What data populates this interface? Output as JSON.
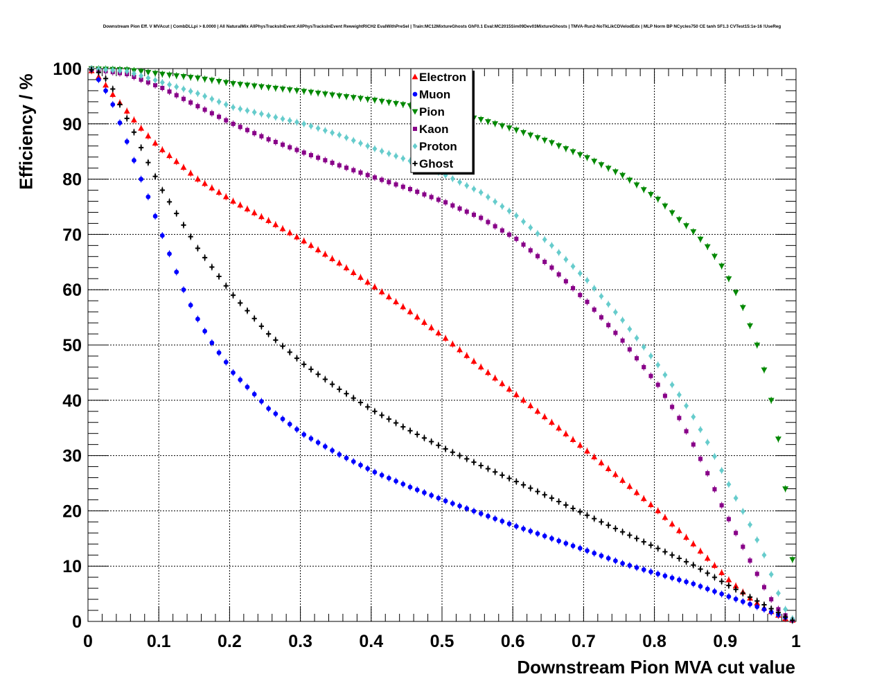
{
  "chart_data": {
    "type": "scatter",
    "title": "Downstream Pion Eff. V MVAcut | CombDLLpi > 8.0000 | All NaturalMix AllPhysTracksInEvent:AllPhysTracksInEvent ReweightRICH2 EvalWithPreSel | Train:MC12MixtureGhosts GhF0.1 Eval:MC2015Sim09Dev03MixtureGhosts | TMVA-Run2-NoTkLikCDVelodEdx | MLP Norm BP NCycles750 CE tanh SF1.3 CVTest15:1e-16 !UseReg",
    "xlabel": "Downstream Pion MVA cut value",
    "ylabel": "Efficiency / %",
    "xlim": [
      0,
      1
    ],
    "ylim": [
      0,
      100
    ],
    "x_ticks": [
      "0",
      "0.1",
      "0.2",
      "0.3",
      "0.4",
      "0.5",
      "0.6",
      "0.7",
      "0.8",
      "0.9",
      "1"
    ],
    "y_ticks": [
      "0",
      "10",
      "20",
      "30",
      "40",
      "50",
      "60",
      "70",
      "80",
      "90",
      "100"
    ],
    "grid": true,
    "legend_position": "top-center",
    "x_step": 0.01,
    "x_first": 0.005,
    "series": [
      {
        "name": "Electron",
        "color": "#ff0000",
        "marker": "triangle-up",
        "anchors": [
          [
            0.005,
            99.6
          ],
          [
            0.015,
            98.5
          ],
          [
            0.025,
            97
          ],
          [
            0.035,
            95.3
          ],
          [
            0.045,
            93.8
          ],
          [
            0.055,
            92.3
          ],
          [
            0.065,
            90.7
          ],
          [
            0.075,
            89.2
          ],
          [
            0.085,
            87.8
          ],
          [
            0.095,
            86.5
          ],
          [
            0.105,
            85.3
          ],
          [
            0.155,
            80
          ],
          [
            0.205,
            76
          ],
          [
            0.255,
            72.5
          ],
          [
            0.305,
            68.8
          ],
          [
            0.355,
            64.8
          ],
          [
            0.405,
            60.5
          ],
          [
            0.455,
            56
          ],
          [
            0.505,
            51.2
          ],
          [
            0.555,
            46
          ],
          [
            0.605,
            41
          ],
          [
            0.655,
            36
          ],
          [
            0.705,
            30.8
          ],
          [
            0.755,
            25.5
          ],
          [
            0.805,
            20
          ],
          [
            0.855,
            14
          ],
          [
            0.905,
            7.5
          ],
          [
            0.935,
            4.2
          ],
          [
            0.955,
            2.4
          ],
          [
            0.975,
            1.1
          ],
          [
            0.985,
            0.5
          ],
          [
            0.995,
            0.2
          ]
        ]
      },
      {
        "name": "Muon",
        "color": "#0000ff",
        "marker": "circle",
        "anchors": [
          [
            0.005,
            99.8
          ],
          [
            0.015,
            98
          ],
          [
            0.025,
            96
          ],
          [
            0.035,
            93.5
          ],
          [
            0.045,
            90.2
          ],
          [
            0.055,
            86.8
          ],
          [
            0.065,
            83.4
          ],
          [
            0.075,
            80
          ],
          [
            0.085,
            76.8
          ],
          [
            0.095,
            73.3
          ],
          [
            0.105,
            69.8
          ],
          [
            0.115,
            66.5
          ],
          [
            0.125,
            63.2
          ],
          [
            0.135,
            60
          ],
          [
            0.145,
            57.2
          ],
          [
            0.155,
            54.7
          ],
          [
            0.165,
            52.5
          ],
          [
            0.175,
            50.4
          ],
          [
            0.185,
            48.6
          ],
          [
            0.195,
            46.9
          ],
          [
            0.205,
            45
          ],
          [
            0.255,
            38.5
          ],
          [
            0.305,
            33.8
          ],
          [
            0.355,
            30.2
          ],
          [
            0.405,
            27
          ],
          [
            0.455,
            24.3
          ],
          [
            0.505,
            21.8
          ],
          [
            0.555,
            19.5
          ],
          [
            0.605,
            17.2
          ],
          [
            0.655,
            15
          ],
          [
            0.705,
            12.8
          ],
          [
            0.755,
            10.5
          ],
          [
            0.805,
            8.6
          ],
          [
            0.855,
            6.8
          ],
          [
            0.905,
            4.5
          ],
          [
            0.955,
            2.2
          ],
          [
            0.975,
            1.2
          ],
          [
            0.985,
            0.7
          ],
          [
            0.995,
            0.2
          ]
        ]
      },
      {
        "name": "Pion",
        "color": "#008800",
        "marker": "triangle-down",
        "anchors": [
          [
            0.005,
            100
          ],
          [
            0.055,
            99.8
          ],
          [
            0.105,
            99
          ],
          [
            0.155,
            98.3
          ],
          [
            0.205,
            97.3
          ],
          [
            0.255,
            96.6
          ],
          [
            0.305,
            95.9
          ],
          [
            0.355,
            95.1
          ],
          [
            0.405,
            94.3
          ],
          [
            0.455,
            93.3
          ],
          [
            0.505,
            92.2
          ],
          [
            0.555,
            90.8
          ],
          [
            0.605,
            88.9
          ],
          [
            0.655,
            86.6
          ],
          [
            0.705,
            83.9
          ],
          [
            0.755,
            80.7
          ],
          [
            0.805,
            76.4
          ],
          [
            0.835,
            72.7
          ],
          [
            0.855,
            70.5
          ],
          [
            0.875,
            67.8
          ],
          [
            0.895,
            64.3
          ],
          [
            0.905,
            62
          ],
          [
            0.915,
            59.5
          ],
          [
            0.925,
            56.8
          ],
          [
            0.935,
            53.5
          ],
          [
            0.945,
            50
          ],
          [
            0.955,
            45.5
          ],
          [
            0.965,
            40
          ],
          [
            0.975,
            33
          ],
          [
            0.985,
            24
          ],
          [
            0.995,
            11.2
          ]
        ]
      },
      {
        "name": "Kaon",
        "color": "#880088",
        "marker": "square",
        "anchors": [
          [
            0.005,
            99.9
          ],
          [
            0.055,
            99
          ],
          [
            0.105,
            96.5
          ],
          [
            0.155,
            93.2
          ],
          [
            0.205,
            90
          ],
          [
            0.255,
            87.2
          ],
          [
            0.305,
            84.8
          ],
          [
            0.355,
            82.5
          ],
          [
            0.405,
            80.3
          ],
          [
            0.455,
            78.2
          ],
          [
            0.505,
            75.8
          ],
          [
            0.555,
            73
          ],
          [
            0.605,
            69.2
          ],
          [
            0.655,
            64
          ],
          [
            0.705,
            57.8
          ],
          [
            0.755,
            50.8
          ],
          [
            0.805,
            42.8
          ],
          [
            0.835,
            36.8
          ],
          [
            0.855,
            32
          ],
          [
            0.875,
            26.8
          ],
          [
            0.895,
            21
          ],
          [
            0.915,
            16
          ],
          [
            0.935,
            11
          ],
          [
            0.955,
            6.2
          ],
          [
            0.965,
            4
          ],
          [
            0.975,
            2.2
          ],
          [
            0.985,
            1.1
          ],
          [
            0.995,
            0.3
          ]
        ]
      },
      {
        "name": "Proton",
        "color": "#66cccc",
        "marker": "diamond",
        "anchors": [
          [
            0.005,
            100
          ],
          [
            0.055,
            99.5
          ],
          [
            0.105,
            97.5
          ],
          [
            0.155,
            95.5
          ],
          [
            0.205,
            93
          ],
          [
            0.255,
            91.5
          ],
          [
            0.305,
            90
          ],
          [
            0.355,
            88
          ],
          [
            0.405,
            85.5
          ],
          [
            0.455,
            83.3
          ],
          [
            0.505,
            80.7
          ],
          [
            0.555,
            77.6
          ],
          [
            0.605,
            73.4
          ],
          [
            0.655,
            68
          ],
          [
            0.705,
            61.7
          ],
          [
            0.755,
            54.5
          ],
          [
            0.805,
            46.4
          ],
          [
            0.835,
            41
          ],
          [
            0.855,
            37
          ],
          [
            0.875,
            32.4
          ],
          [
            0.895,
            27.3
          ],
          [
            0.915,
            22.3
          ],
          [
            0.935,
            17.5
          ],
          [
            0.955,
            12
          ],
          [
            0.965,
            8.5
          ],
          [
            0.975,
            5.1
          ],
          [
            0.985,
            2.2
          ],
          [
            0.995,
            0.5
          ]
        ]
      },
      {
        "name": "Ghost",
        "color": "#000000",
        "marker": "cross",
        "anchors": [
          [
            0.005,
            99.8
          ],
          [
            0.015,
            99.3
          ],
          [
            0.025,
            98.2
          ],
          [
            0.035,
            96.3
          ],
          [
            0.045,
            93.5
          ],
          [
            0.055,
            91
          ],
          [
            0.065,
            88.5
          ],
          [
            0.075,
            85.7
          ],
          [
            0.085,
            83
          ],
          [
            0.095,
            80.5
          ],
          [
            0.105,
            78
          ],
          [
            0.155,
            67.5
          ],
          [
            0.205,
            59
          ],
          [
            0.255,
            52
          ],
          [
            0.305,
            46.5
          ],
          [
            0.355,
            42
          ],
          [
            0.405,
            38
          ],
          [
            0.455,
            34.5
          ],
          [
            0.505,
            31.2
          ],
          [
            0.555,
            28.2
          ],
          [
            0.605,
            25.3
          ],
          [
            0.655,
            22.3
          ],
          [
            0.705,
            19.2
          ],
          [
            0.755,
            16.2
          ],
          [
            0.805,
            13.2
          ],
          [
            0.855,
            10.2
          ],
          [
            0.905,
            6.5
          ],
          [
            0.955,
            3
          ],
          [
            0.975,
            1.6
          ],
          [
            0.985,
            0.8
          ],
          [
            0.995,
            0.2
          ]
        ]
      }
    ]
  }
}
